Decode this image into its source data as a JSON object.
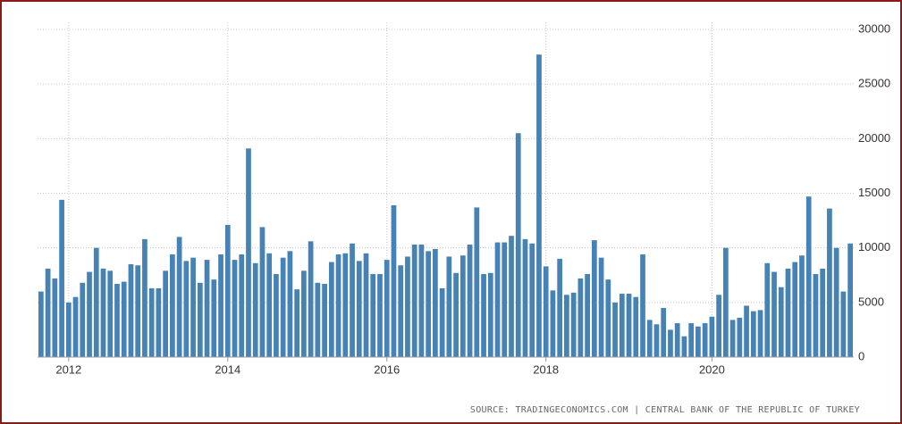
{
  "chart_data": {
    "type": "bar",
    "categories": [
      null,
      null,
      null,
      null,
      "2012",
      null,
      null,
      null,
      null,
      null,
      null,
      null,
      null,
      null,
      null,
      null,
      null,
      null,
      null,
      null,
      null,
      null,
      null,
      null,
      null,
      null,
      null,
      "2014",
      null,
      null,
      null,
      null,
      null,
      null,
      null,
      null,
      null,
      null,
      null,
      null,
      null,
      null,
      null,
      null,
      null,
      null,
      null,
      null,
      null,
      null,
      "2016",
      null,
      null,
      null,
      null,
      null,
      null,
      null,
      null,
      null,
      null,
      null,
      null,
      null,
      null,
      null,
      null,
      null,
      null,
      null,
      null,
      null,
      null,
      "2018",
      null,
      null,
      null,
      null,
      null,
      null,
      null,
      null,
      null,
      null,
      null,
      null,
      null,
      null,
      null,
      null,
      null,
      null,
      null,
      null,
      null,
      null,
      null,
      "2020",
      null,
      null,
      null,
      null,
      null,
      null,
      null,
      null,
      null,
      null,
      null,
      null,
      null,
      null,
      null,
      null,
      null,
      null,
      null,
      null
    ],
    "values": [
      6000,
      8100,
      7200,
      14400,
      5000,
      5500,
      6800,
      7800,
      10000,
      8100,
      7900,
      6700,
      6900,
      8500,
      8400,
      10800,
      6300,
      6300,
      7900,
      9400,
      11000,
      8800,
      9100,
      6800,
      8900,
      7100,
      9400,
      12100,
      8900,
      9400,
      19100,
      8600,
      11900,
      9500,
      7600,
      9100,
      9700,
      6200,
      7900,
      10600,
      6800,
      6700,
      8700,
      9400,
      9500,
      10400,
      8800,
      9500,
      7600,
      7600,
      8900,
      13900,
      8400,
      9200,
      10300,
      10300,
      9700,
      9900,
      6300,
      9200,
      7700,
      9300,
      10300,
      13700,
      7600,
      7700,
      10500,
      10500,
      11100,
      20500,
      10800,
      10400,
      27700,
      8300,
      6100,
      9000,
      5700,
      5900,
      7200,
      7600,
      10700,
      9100,
      7100,
      5000,
      5800,
      5800,
      5500,
      9400,
      3400,
      3000,
      4500,
      2500,
      3100,
      1900,
      3100,
      2800,
      3100,
      3700,
      5700,
      10000,
      3400,
      3600,
      4700,
      4200,
      4300,
      8600,
      7800,
      6400,
      8100,
      8700,
      9300,
      14700,
      7600,
      8100,
      13600,
      10000,
      6000,
      10400
    ],
    "color": "#4682b4",
    "ylim": [
      0,
      30000
    ],
    "yticks": [
      0,
      5000,
      10000,
      15000,
      20000,
      25000,
      30000
    ],
    "grid": true,
    "source": "SOURCE: TRADINGECONOMICS.COM | CENTRAL BANK OF THE REPUBLIC OF TURKEY"
  }
}
